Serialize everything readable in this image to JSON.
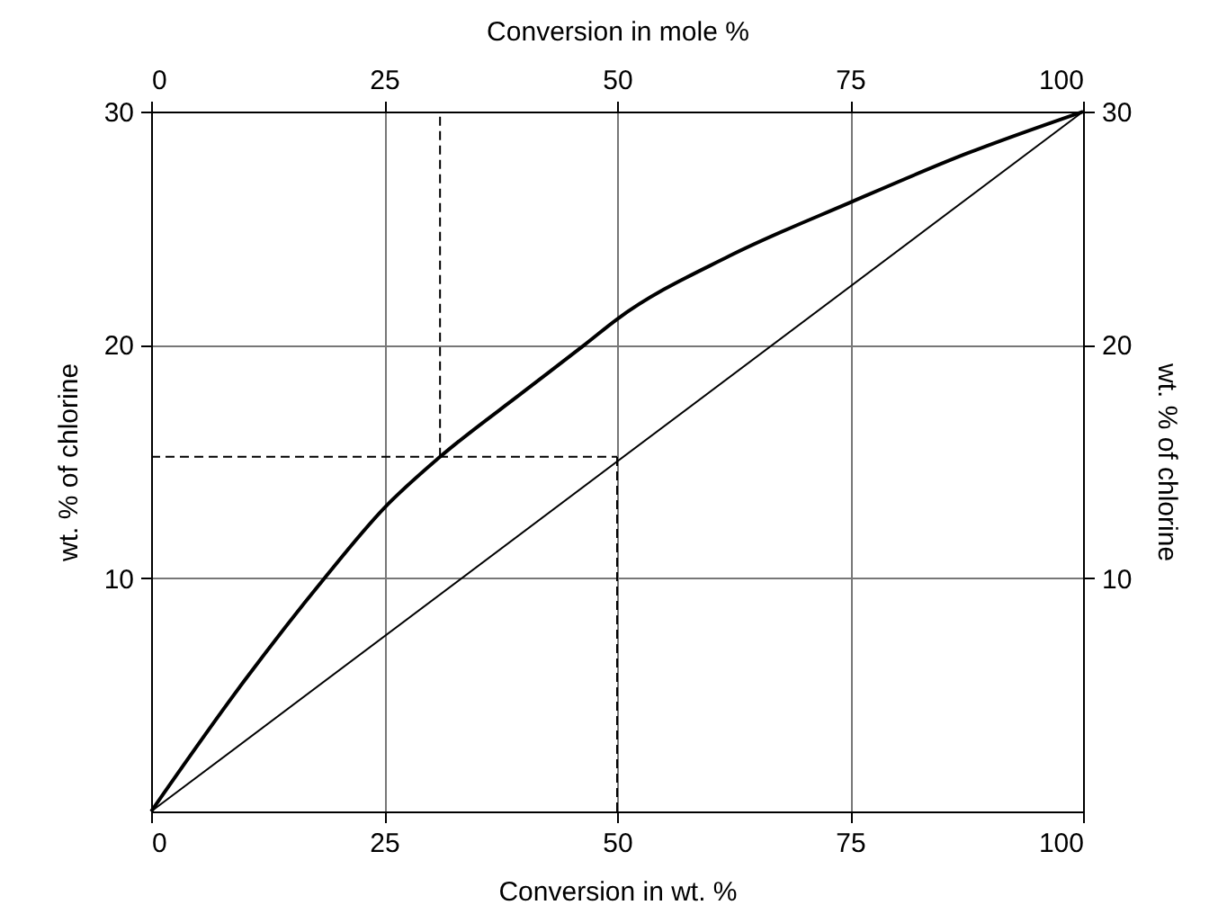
{
  "chart_data": {
    "type": "line",
    "xlabel": "Conversion in wt. %",
    "ylabel": "wt. % of chlorine",
    "y2label": "wt. % of chlorine",
    "x2label": "Conversion in mole %",
    "xlim": [
      0,
      100
    ],
    "xticks": [
      0,
      25,
      50,
      75,
      100
    ],
    "ylim": [
      0,
      30
    ],
    "yticks": [
      10,
      20,
      30
    ],
    "x2lim": [
      0,
      100
    ],
    "x2ticks": [
      0,
      25,
      50,
      75,
      100
    ],
    "y2lim": [
      0,
      30
    ],
    "y2ticks": [
      10,
      20,
      30
    ],
    "grid": true,
    "marker": "none",
    "series": [
      {
        "color": "#000000",
        "line_style": "solid",
        "x": [
          0,
          10,
          18.6,
          25,
          31,
          40,
          46.5,
          50,
          62,
          75,
          87.5,
          100
        ],
        "values": [
          0,
          5.6,
          10,
          13,
          15.2,
          18,
          20,
          21.1,
          23.8,
          26.1,
          28.2,
          30
        ]
      },
      {
        "color": "#000000",
        "line_style": "solid",
        "x": [
          0,
          100
        ],
        "values": [
          0,
          30
        ]
      },
      {
        "color": "#000000",
        "line_style": "dashed",
        "x": [
          0,
          50
        ],
        "values": [
          15.2,
          15.2
        ]
      },
      {
        "color": "#000000",
        "line_style": "dashed",
        "x": [
          31,
          31
        ],
        "values": [
          15.2,
          30
        ]
      },
      {
        "color": "#000000",
        "line_style": "dashed",
        "x": [
          50,
          50
        ],
        "values": [
          0,
          15.2
        ]
      }
    ]
  }
}
